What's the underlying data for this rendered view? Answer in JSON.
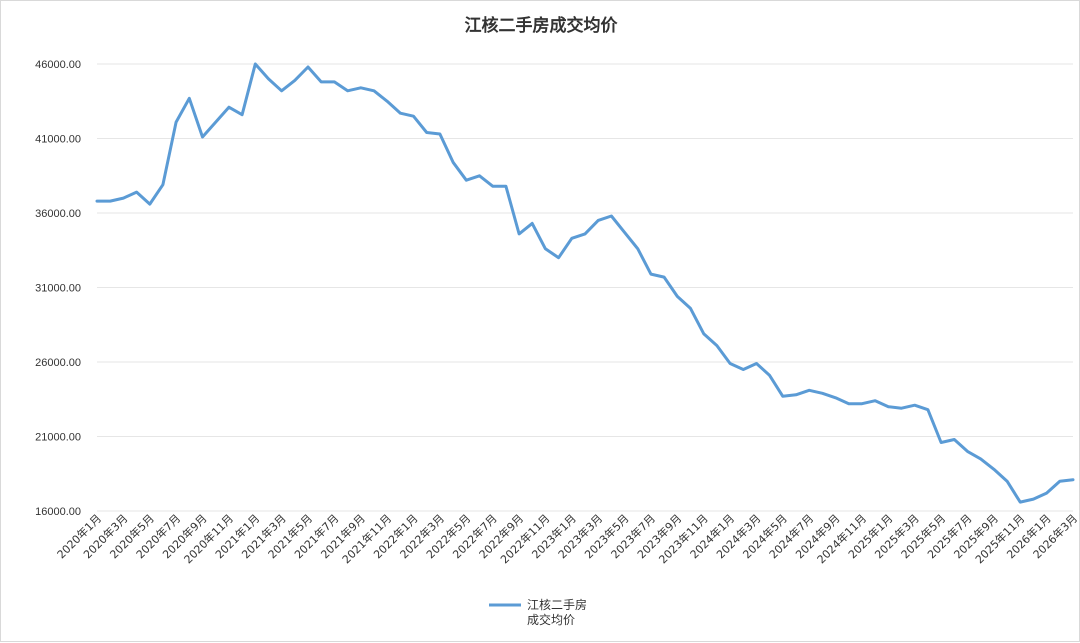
{
  "chart_data": {
    "type": "line",
    "title": "江核二手房成交均价",
    "xlabel": "",
    "ylabel": "",
    "ylim": [
      16000,
      46000
    ],
    "y_ticks": [
      "16000.00",
      "21000.00",
      "26000.00",
      "31000.00",
      "36000.00",
      "41000.00",
      "46000.00"
    ],
    "y_tick_values": [
      16000,
      21000,
      26000,
      31000,
      36000,
      41000,
      46000
    ],
    "grid": true,
    "legend_position": "bottom",
    "x_tick_labels": [
      "2020年1月",
      "2020年3月",
      "2020年5月",
      "2020年7月",
      "2020年9月",
      "2020年11月",
      "2021年1月",
      "2021年3月",
      "2021年5月",
      "2021年7月",
      "2021年9月",
      "2021年11月",
      "2022年1月",
      "2022年3月",
      "2022年5月",
      "2022年7月",
      "2022年9月",
      "2022年11月",
      "2023年1月",
      "2023年3月",
      "2023年5月",
      "2023年7月",
      "2023年9月",
      "2023年11月",
      "2024年1月",
      "2024年3月",
      "2024年5月",
      "2024年7月",
      "2024年9月",
      "2024年11月",
      "2025年1月",
      "2025年3月",
      "2025年5月",
      "2025年7月",
      "2025年9月",
      "2025年11月",
      "2026年1月",
      "2026年3月"
    ],
    "series": [
      {
        "name": "江核二手房成交均价",
        "color": "#5b9bd5",
        "values": [
          36800,
          36800,
          37000,
          37400,
          36600,
          37900,
          42100,
          43700,
          41100,
          42100,
          43100,
          42600,
          46000,
          45000,
          44200,
          44900,
          45800,
          44800,
          44800,
          44200,
          44400,
          44200,
          43500,
          42700,
          42500,
          41400,
          41300,
          39400,
          38200,
          38500,
          37800,
          37800,
          34600,
          35300,
          33600,
          33000,
          34300,
          34600,
          35500,
          35800,
          34700,
          33600,
          31900,
          31700,
          30400,
          29600,
          27900,
          27100,
          25900,
          25500,
          25900,
          25100,
          23700,
          23800,
          24100,
          23900,
          23600,
          23200,
          23200,
          23400,
          23000,
          22900,
          23100,
          22800,
          20600,
          20800,
          20000,
          19500,
          18800,
          18000,
          16600,
          16800,
          17200,
          18000,
          18100
        ]
      }
    ]
  },
  "legend": {
    "label_line1": "江核二手房",
    "label_line2": "成交均价"
  }
}
